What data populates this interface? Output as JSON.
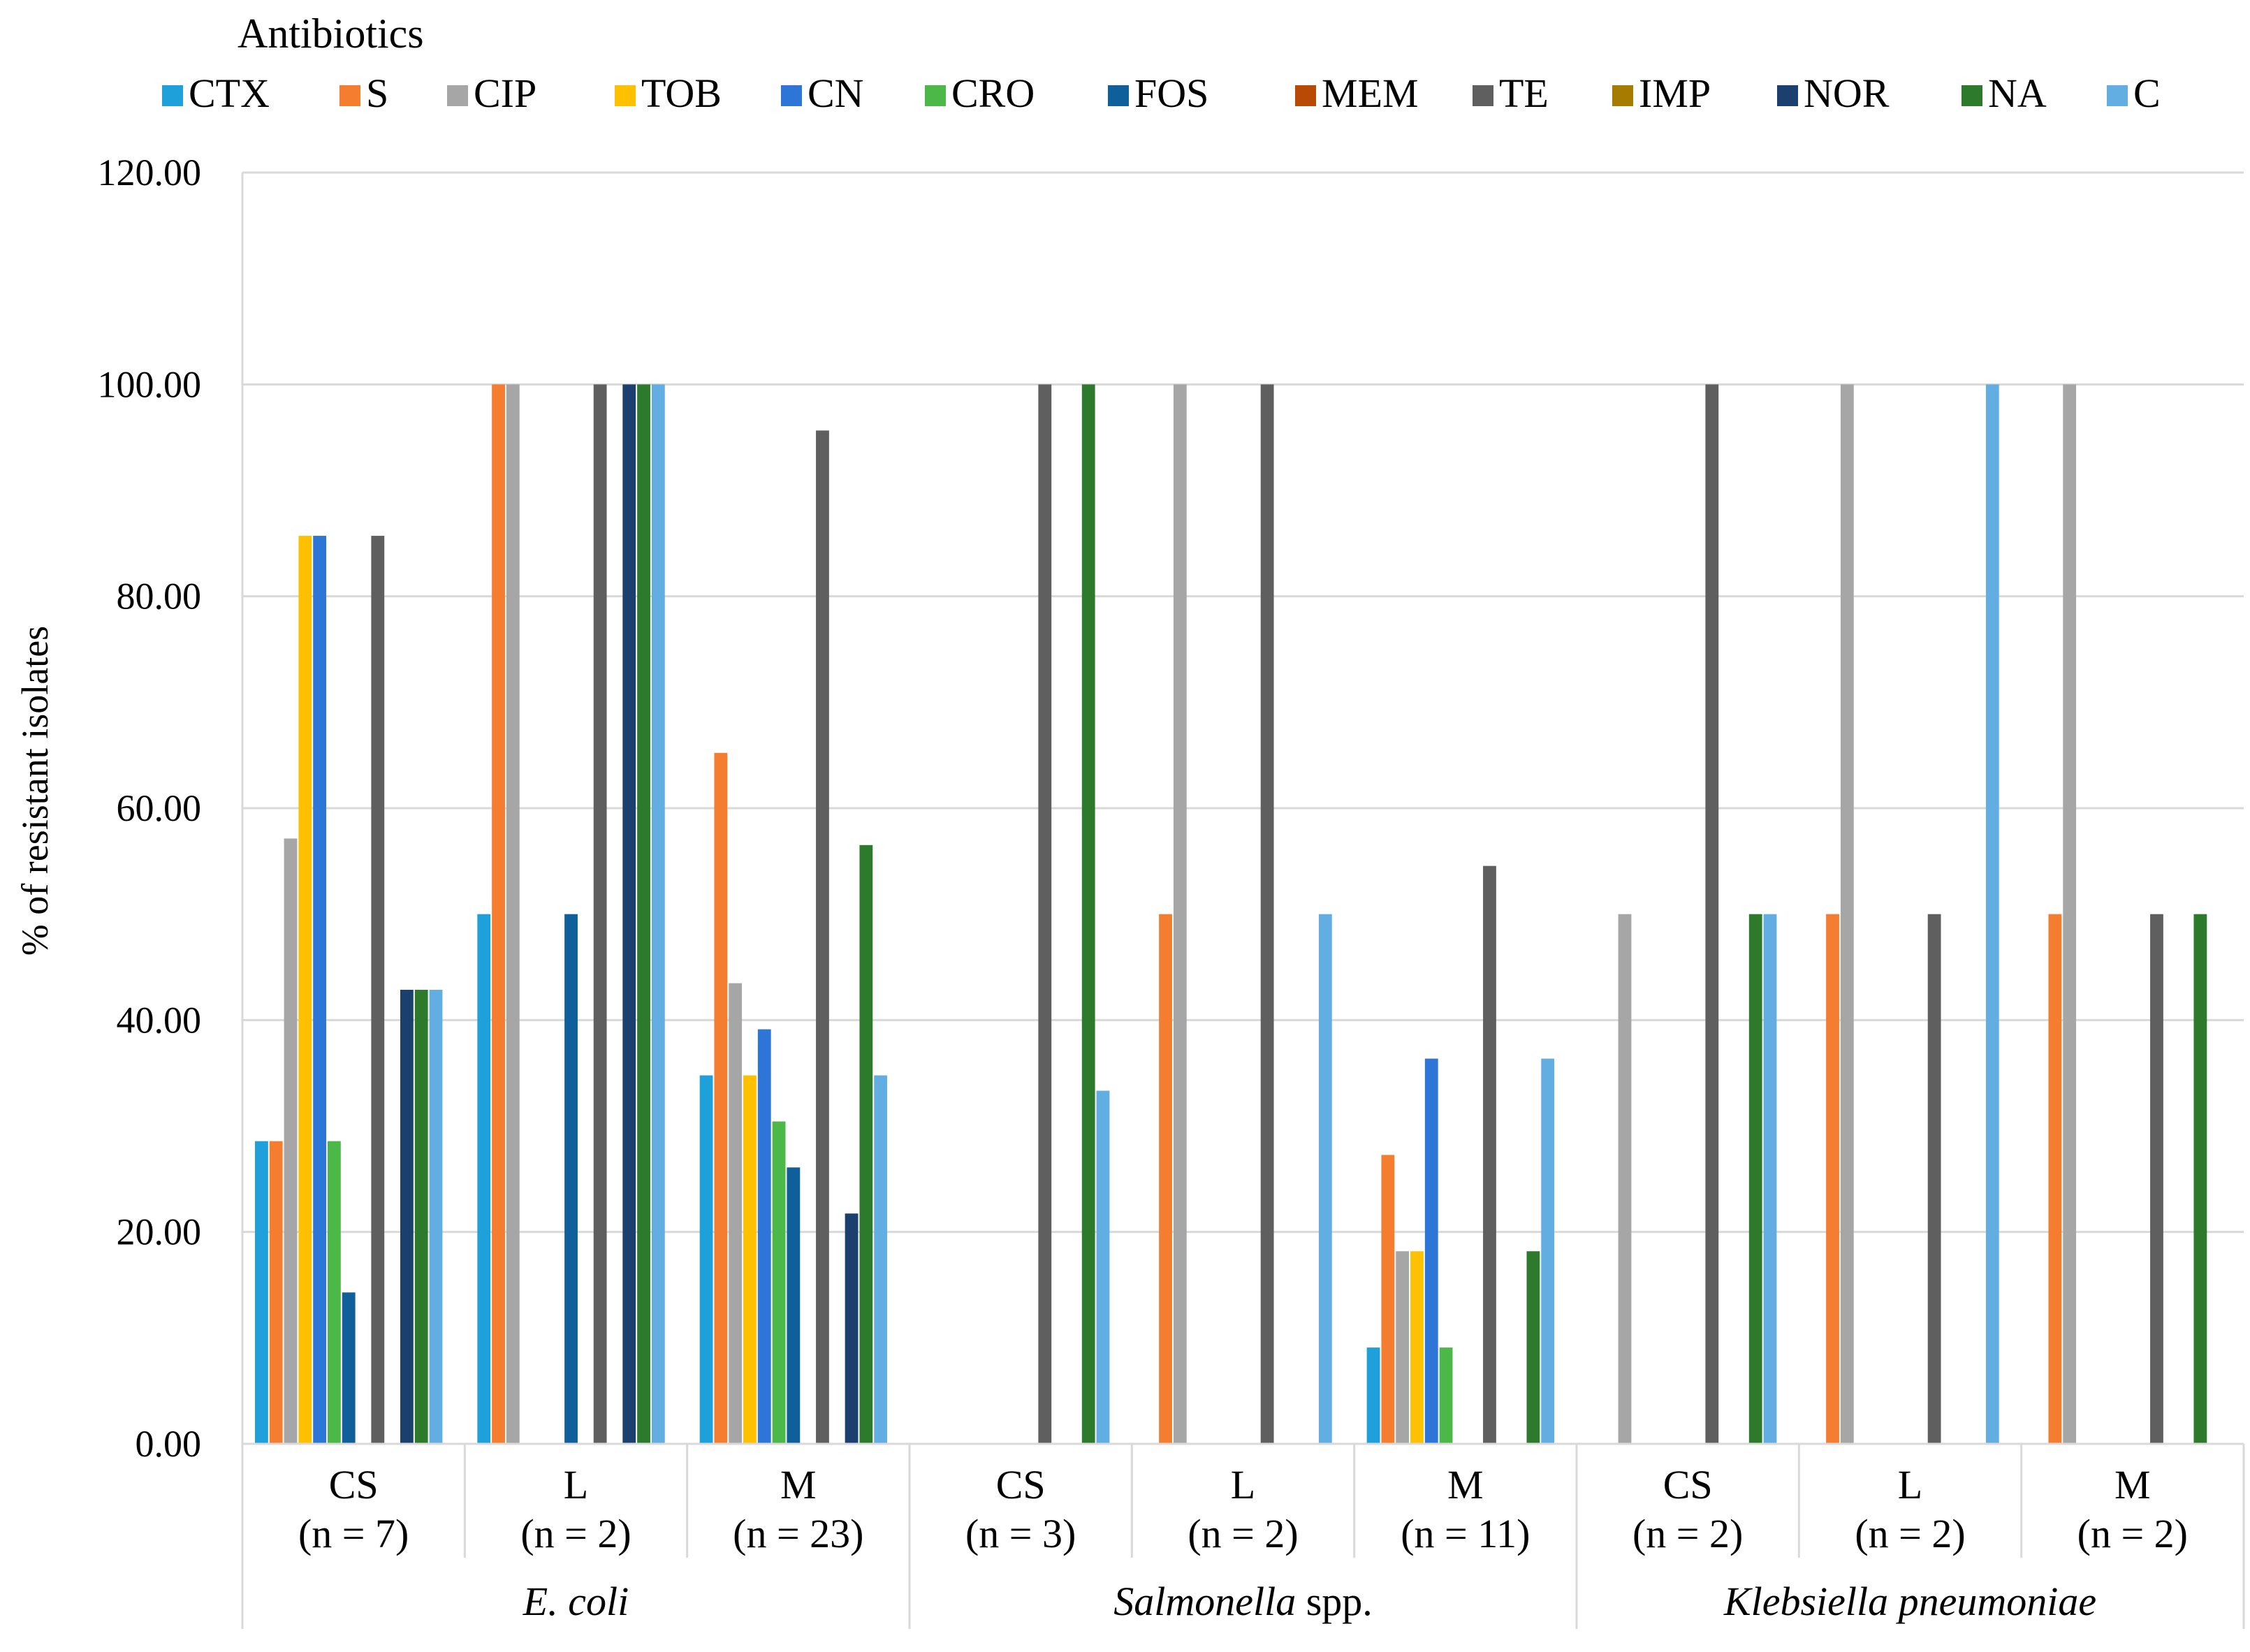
{
  "chart_data": {
    "type": "bar",
    "legend_title": "Antibiotics",
    "legend_position": "top",
    "ylabel": "% of resistant isolates",
    "ylim": [
      0,
      120
    ],
    "yticks": [
      "0.00",
      "20.00",
      "40.00",
      "60.00",
      "80.00",
      "100.00",
      "120.00"
    ],
    "grid": true,
    "groups": [
      {
        "label": "E. coli",
        "categories": [
          {
            "label": "CS",
            "n": "(n = 7)"
          },
          {
            "label": "L",
            "n": "(n = 2)"
          },
          {
            "label": "M",
            "n": "(n = 23)"
          }
        ]
      },
      {
        "label": "Salmonella",
        "label_suffix": " spp.",
        "categories": [
          {
            "label": "CS",
            "n": "(n = 3)"
          },
          {
            "label": "L",
            "n": "(n = 2)"
          },
          {
            "label": "M",
            "n": "(n = 11)"
          }
        ]
      },
      {
        "label": "Klebsiella pneumoniae",
        "categories": [
          {
            "label": "CS",
            "n": "(n = 2)"
          },
          {
            "label": "L",
            "n": "(n = 2)"
          },
          {
            "label": "M",
            "n": "(n = 2)"
          }
        ]
      }
    ],
    "series": [
      {
        "name": "CTX",
        "color": "#1ea0db",
        "values": [
          28.57,
          50,
          34.78,
          0,
          0,
          9.09,
          0,
          0,
          0
        ]
      },
      {
        "name": "S",
        "color": "#f47d30",
        "values": [
          28.57,
          100,
          65.22,
          0,
          50,
          27.27,
          0,
          50,
          50
        ]
      },
      {
        "name": "CIP",
        "color": "#a6a6a6",
        "values": [
          57.14,
          100,
          43.48,
          0,
          100,
          18.18,
          50,
          100,
          100
        ]
      },
      {
        "name": "TOB",
        "color": "#ffc000",
        "values": [
          85.71,
          0,
          34.78,
          0,
          0,
          18.18,
          0,
          0,
          0
        ]
      },
      {
        "name": "CN",
        "color": "#2e75d8",
        "values": [
          85.71,
          0,
          39.13,
          0,
          0,
          36.36,
          0,
          0,
          0
        ]
      },
      {
        "name": "CRO",
        "color": "#4cb848",
        "values": [
          28.57,
          0,
          30.43,
          0,
          0,
          9.09,
          0,
          0,
          0
        ]
      },
      {
        "name": "FOS",
        "color": "#0f5f9a",
        "values": [
          14.29,
          50,
          26.09,
          0,
          0,
          0,
          0,
          0,
          0
        ]
      },
      {
        "name": "MEM",
        "color": "#b84a06",
        "values": [
          0,
          0,
          0,
          0,
          0,
          0,
          0,
          0,
          0
        ]
      },
      {
        "name": "TE",
        "color": "#5f5f5f",
        "values": [
          85.71,
          100,
          95.65,
          100,
          100,
          54.55,
          100,
          50,
          50
        ]
      },
      {
        "name": "IMP",
        "color": "#a57c00",
        "values": [
          0,
          0,
          0,
          0,
          0,
          0,
          0,
          0,
          0
        ]
      },
      {
        "name": "NOR",
        "color": "#1b3f6e",
        "values": [
          42.86,
          100,
          21.74,
          0,
          0,
          0,
          0,
          0,
          0
        ]
      },
      {
        "name": "NA",
        "color": "#2d7a2d",
        "values": [
          42.86,
          100,
          56.52,
          100,
          0,
          18.18,
          50,
          0,
          50
        ]
      },
      {
        "name": "C",
        "color": "#62aee3",
        "values": [
          42.86,
          100,
          34.78,
          33.33,
          50,
          36.36,
          50,
          100,
          0
        ]
      }
    ]
  }
}
